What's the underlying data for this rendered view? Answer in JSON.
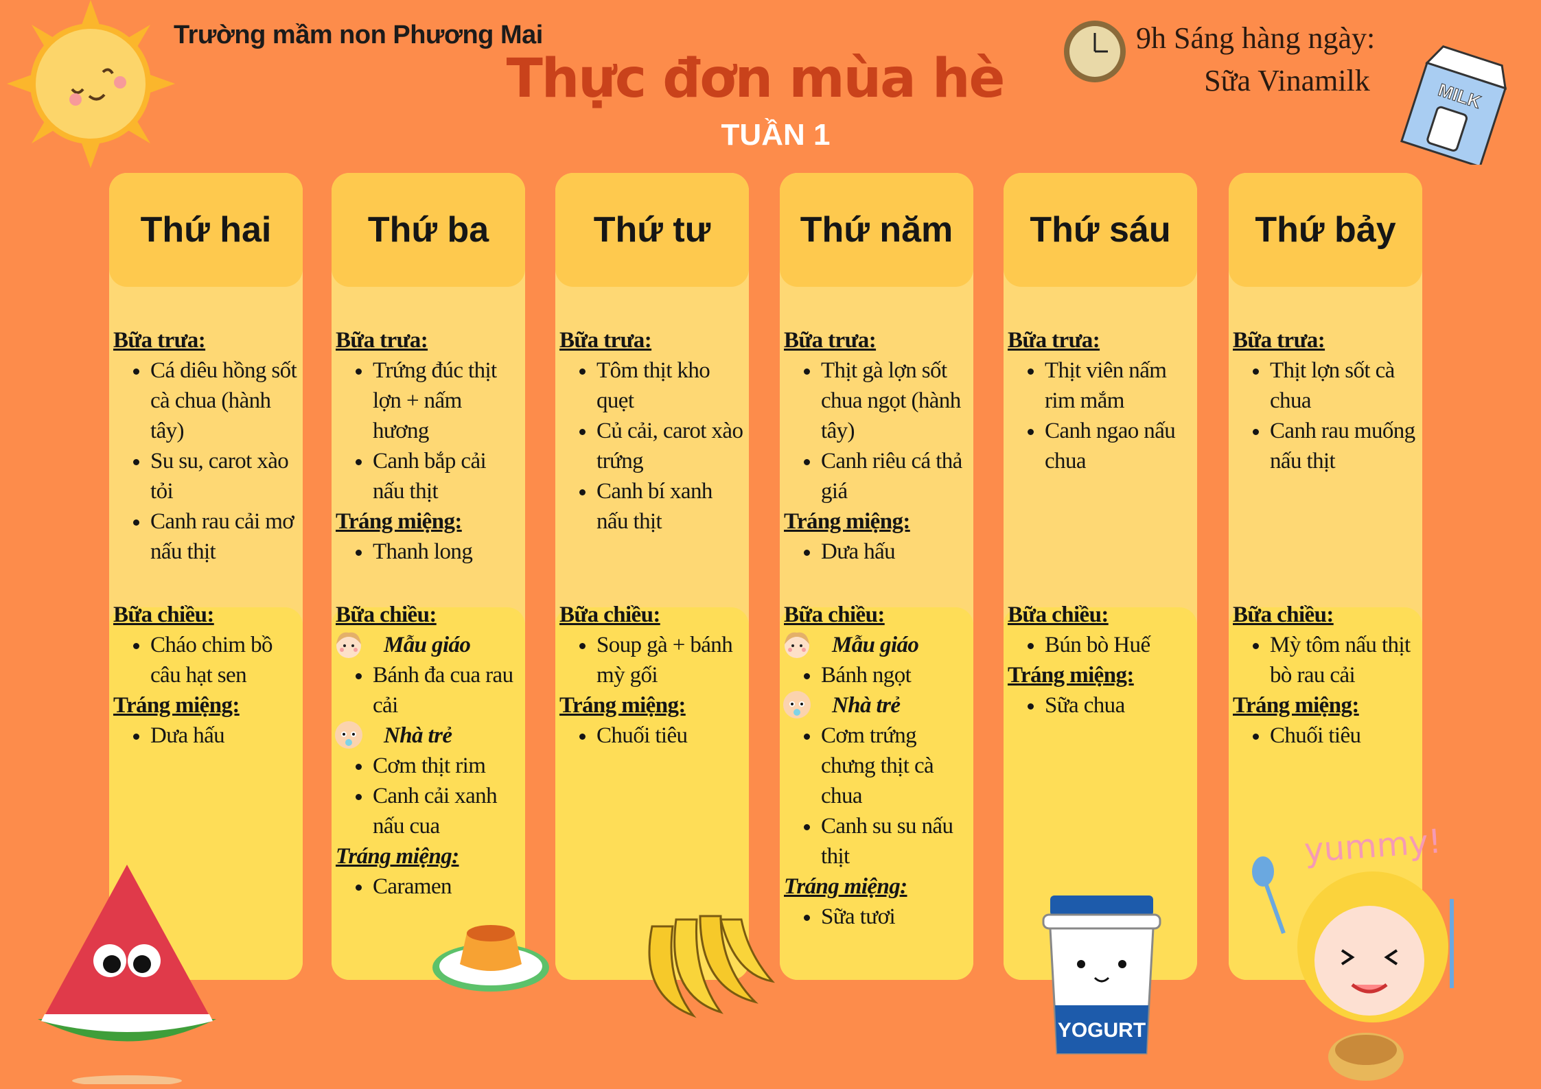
{
  "header": {
    "school": "Trường mầm non Phương Mai",
    "title": "Thực đơn mùa hè",
    "week": "TUẦN 1",
    "milk_time": "9h Sáng hàng ngày:",
    "milk_name": "Sữa Vinamilk",
    "milk_carton_text": "MILK"
  },
  "colors": {
    "background": "#fd8c4b",
    "column": "#fed874",
    "column_header": "#fec94e",
    "afternoon": "#fedd57",
    "title": "#c9421b"
  },
  "days": [
    {
      "name": "Thứ hai",
      "lunch": [
        {
          "t": "label",
          "text": "Bữa trưa:"
        },
        {
          "t": "item",
          "text": "Cá diêu hồng sốt cà chua (hành tây)"
        },
        {
          "t": "item",
          "text": "Su su, carot xào tỏi"
        },
        {
          "t": "item",
          "text": "Canh rau cải mơ nấu thịt"
        }
      ],
      "afternoon": [
        {
          "t": "label",
          "text": "Bữa chiều:"
        },
        {
          "t": "item",
          "text": "Cháo chim bồ câu hạt sen"
        },
        {
          "t": "label",
          "text": "Tráng miệng:"
        },
        {
          "t": "item",
          "text": "Dưa hấu"
        }
      ]
    },
    {
      "name": "Thứ ba",
      "lunch": [
        {
          "t": "label",
          "text": "Bữa trưa:"
        },
        {
          "t": "item",
          "text": "Trứng đúc thịt lợn + nấm hương"
        },
        {
          "t": "item",
          "text": "Canh bắp cải nấu thịt"
        },
        {
          "t": "label",
          "text": "Tráng miệng:"
        },
        {
          "t": "item",
          "text": "Thanh long"
        }
      ],
      "afternoon": [
        {
          "t": "label",
          "text": "Bữa chiều:"
        },
        {
          "t": "group",
          "text": "Mẫu giáo",
          "icon": "girl-face-icon"
        },
        {
          "t": "item",
          "text": "Bánh đa cua rau cải"
        },
        {
          "t": "group",
          "text": "Nhà trẻ",
          "icon": "baby-face-icon"
        },
        {
          "t": "item",
          "text": "Cơm thịt rim"
        },
        {
          "t": "item",
          "text": "Canh cải xanh nấu cua"
        },
        {
          "t": "label",
          "text": "Tráng miệng:",
          "style": "italic"
        },
        {
          "t": "item",
          "text": "Caramen"
        }
      ]
    },
    {
      "name": "Thứ tư",
      "lunch": [
        {
          "t": "label",
          "text": "Bữa trưa:"
        },
        {
          "t": "item",
          "text": "Tôm thịt kho quẹt"
        },
        {
          "t": "item",
          "text": "Củ cải, carot xào trứng"
        },
        {
          "t": "item",
          "text": "Canh bí xanh nấu thịt"
        }
      ],
      "afternoon": [
        {
          "t": "label",
          "text": "Bữa chiều:"
        },
        {
          "t": "item",
          "text": "Soup gà + bánh mỳ gối"
        },
        {
          "t": "label",
          "text": "Tráng miệng:"
        },
        {
          "t": "item",
          "text": "Chuối tiêu"
        }
      ]
    },
    {
      "name": "Thứ năm",
      "lunch": [
        {
          "t": "label",
          "text": "Bữa trưa:"
        },
        {
          "t": "item",
          "text": "Thịt gà lợn sốt chua ngọt (hành tây)"
        },
        {
          "t": "item",
          "text": "Canh riêu cá thả giá"
        },
        {
          "t": "label",
          "text": "Tráng miệng:"
        },
        {
          "t": "item",
          "text": "Dưa hấu"
        }
      ],
      "afternoon": [
        {
          "t": "label",
          "text": "Bữa chiều:"
        },
        {
          "t": "group",
          "text": "Mẫu giáo",
          "icon": "girl-face-icon"
        },
        {
          "t": "item",
          "text": "Bánh ngọt"
        },
        {
          "t": "group",
          "text": "Nhà trẻ",
          "icon": "baby-face-icon"
        },
        {
          "t": "item",
          "text": "Cơm trứng chưng thịt cà chua"
        },
        {
          "t": "item",
          "text": "Canh su su nấu thịt"
        },
        {
          "t": "label",
          "text": "Tráng miệng:",
          "style": "italic"
        },
        {
          "t": "item",
          "text": "Sữa tươi"
        }
      ]
    },
    {
      "name": "Thứ sáu",
      "lunch": [
        {
          "t": "label",
          "text": "Bữa trưa:"
        },
        {
          "t": "item",
          "text": "Thịt viên nấm rim mắm"
        },
        {
          "t": "item",
          "text": "Canh ngao nấu chua"
        }
      ],
      "afternoon": [
        {
          "t": "label",
          "text": "Bữa chiều:"
        },
        {
          "t": "item",
          "text": "Bún bò Huế"
        },
        {
          "t": "label",
          "text": "Tráng miệng:"
        },
        {
          "t": "item",
          "text": "Sữa chua"
        }
      ]
    },
    {
      "name": "Thứ bảy",
      "lunch": [
        {
          "t": "label",
          "text": "Bữa trưa:"
        },
        {
          "t": "item",
          "text": "Thịt lợn sốt cà chua"
        },
        {
          "t": "item",
          "text": "Canh rau muống nấu thịt"
        }
      ],
      "afternoon": [
        {
          "t": "label",
          "text": "Bữa chiều:"
        },
        {
          "t": "item",
          "text": "Mỳ tôm nấu thịt bò rau cải"
        },
        {
          "t": "label",
          "text": "Tráng miệng:"
        },
        {
          "t": "item",
          "text": "Chuối tiêu"
        }
      ]
    }
  ],
  "decor": {
    "yogurt_label": "YOGURT",
    "yummy_text": "yummy!"
  }
}
